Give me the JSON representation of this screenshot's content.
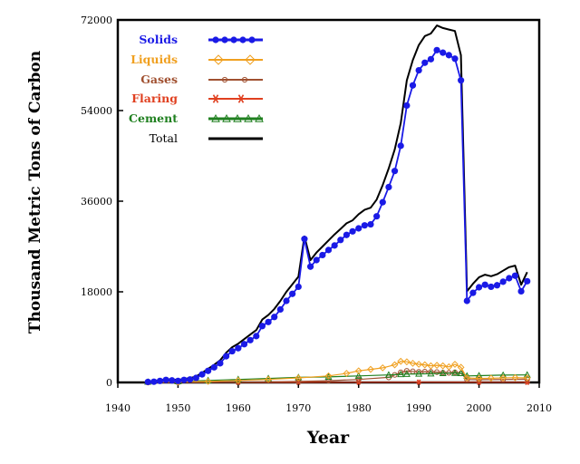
{
  "chart_data": {
    "type": "line",
    "title": "",
    "xlabel": "Year",
    "ylabel": "Thousand Metric Tons of Carbon",
    "xlim": [
      1940,
      2010
    ],
    "ylim": [
      0,
      72000
    ],
    "xticks": [
      "1940",
      "1950",
      "1960",
      "1970",
      "1980",
      "1990",
      "2000",
      "2010"
    ],
    "yticks": [
      "0",
      "18000",
      "36000",
      "54000",
      "72000"
    ],
    "grid": false,
    "legend_position": "top-left",
    "series": [
      {
        "name": "Solids",
        "color": "#1a1ae6",
        "marker": "dot",
        "x": [
          1945,
          1946,
          1947,
          1948,
          1949,
          1950,
          1951,
          1952,
          1953,
          1954,
          1955,
          1956,
          1957,
          1958,
          1959,
          1960,
          1961,
          1962,
          1963,
          1964,
          1965,
          1966,
          1967,
          1968,
          1969,
          1970,
          1971,
          1972,
          1973,
          1974,
          1975,
          1976,
          1977,
          1978,
          1979,
          1980,
          1981,
          1982,
          1983,
          1984,
          1985,
          1986,
          1987,
          1988,
          1989,
          1990,
          1991,
          1992,
          1993,
          1994,
          1995,
          1996,
          1997,
          1998,
          1999,
          2000,
          2001,
          2002,
          2003,
          2004,
          2005,
          2006,
          2007,
          2008
        ],
        "values": [
          100,
          150,
          300,
          500,
          400,
          300,
          500,
          600,
          900,
          1600,
          2300,
          3000,
          3800,
          5200,
          6200,
          6800,
          7600,
          8400,
          9200,
          11200,
          12000,
          13000,
          14500,
          16200,
          17600,
          19000,
          28500,
          23000,
          24300,
          25300,
          26300,
          27200,
          28300,
          29300,
          30000,
          30600,
          31200,
          31400,
          33000,
          35800,
          38800,
          42000,
          47000,
          55000,
          59000,
          62000,
          63500,
          64200,
          66000,
          65500,
          65000,
          64300,
          60000,
          16200,
          17800,
          18900,
          19400,
          19000,
          19300,
          20000,
          20700,
          21200,
          18100,
          20100
        ]
      },
      {
        "name": "Liquids",
        "color": "#f0a020",
        "marker": "diamond",
        "x": [
          1945,
          1950,
          1955,
          1960,
          1965,
          1970,
          1975,
          1978,
          1980,
          1982,
          1984,
          1986,
          1987,
          1988,
          1989,
          1990,
          1991,
          1992,
          1993,
          1994,
          1995,
          1996,
          1997,
          1998,
          2000,
          2002,
          2004,
          2006,
          2008
        ],
        "values": [
          50,
          100,
          200,
          400,
          600,
          900,
          1300,
          1800,
          2300,
          2600,
          2900,
          3500,
          4200,
          4100,
          3800,
          3600,
          3500,
          3300,
          3400,
          3300,
          3100,
          3600,
          3000,
          900,
          800,
          850,
          900,
          950,
          900
        ]
      },
      {
        "name": "Gases",
        "color": "#a05030",
        "marker": "circle",
        "x": [
          1945,
          1950,
          1960,
          1970,
          1975,
          1980,
          1985,
          1986,
          1987,
          1988,
          1989,
          1990,
          1991,
          1992,
          1993,
          1994,
          1995,
          1996,
          1997,
          1998,
          2000,
          2004,
          2008
        ],
        "values": [
          0,
          10,
          60,
          200,
          350,
          600,
          1000,
          1500,
          2000,
          2300,
          2200,
          2100,
          2150,
          2100,
          2050,
          1950,
          1900,
          2000,
          1800,
          600,
          550,
          600,
          650
        ]
      },
      {
        "name": "Flaring",
        "color": "#e04020",
        "marker": "star",
        "x": [
          1945,
          1960,
          1970,
          1980,
          1990,
          2000,
          2008
        ],
        "values": [
          0,
          10,
          20,
          40,
          50,
          30,
          30
        ]
      },
      {
        "name": "Cement",
        "color": "#208020",
        "marker": "triangle",
        "x": [
          1945,
          1950,
          1955,
          1960,
          1965,
          1970,
          1975,
          1980,
          1985,
          1987,
          1988,
          1990,
          1992,
          1994,
          1996,
          1997,
          1998,
          2000,
          2004,
          2008
        ],
        "values": [
          100,
          200,
          400,
          600,
          800,
          1000,
          1100,
          1300,
          1500,
          1600,
          1650,
          1700,
          1750,
          1800,
          1850,
          1800,
          1300,
          1350,
          1450,
          1500
        ]
      },
      {
        "name": "Total",
        "color": "#000000",
        "marker": "none",
        "x": [
          1945,
          1946,
          1947,
          1948,
          1949,
          1950,
          1951,
          1952,
          1953,
          1954,
          1955,
          1956,
          1957,
          1958,
          1959,
          1960,
          1961,
          1962,
          1963,
          1964,
          1965,
          1966,
          1967,
          1968,
          1969,
          1970,
          1971,
          1972,
          1973,
          1974,
          1975,
          1976,
          1977,
          1978,
          1979,
          1980,
          1981,
          1982,
          1983,
          1984,
          1985,
          1986,
          1987,
          1988,
          1989,
          1990,
          1991,
          1992,
          1993,
          1994,
          1995,
          1996,
          1997,
          1998,
          1999,
          2000,
          2001,
          2002,
          2003,
          2004,
          2005,
          2006,
          2007,
          2008
        ],
        "values": [
          200,
          250,
          400,
          650,
          600,
          500,
          700,
          850,
          1200,
          1900,
          2700,
          3500,
          4400,
          5900,
          7000,
          7700,
          8600,
          9500,
          10400,
          12500,
          13400,
          14600,
          16200,
          18000,
          19500,
          21000,
          29000,
          24300,
          25800,
          27000,
          28200,
          29400,
          30500,
          31600,
          32200,
          33400,
          34300,
          34700,
          36300,
          39200,
          42500,
          46300,
          51500,
          60000,
          64000,
          67000,
          68800,
          69300,
          70900,
          70400,
          70100,
          69800,
          65000,
          18100,
          19600,
          20900,
          21400,
          21100,
          21500,
          22200,
          22900,
          23200,
          19400,
          21900
        ]
      }
    ]
  }
}
